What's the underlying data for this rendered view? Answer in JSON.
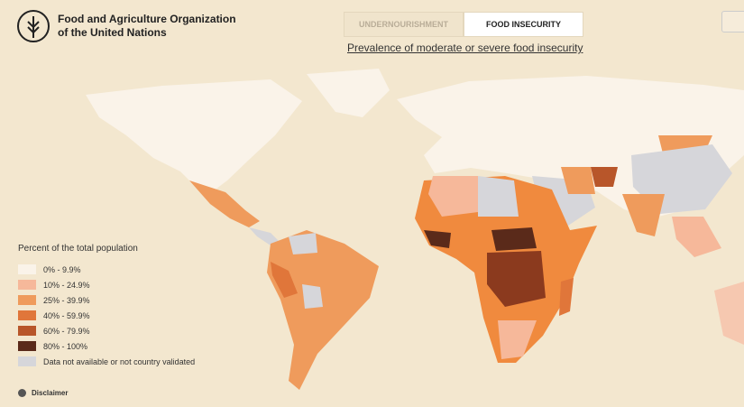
{
  "header": {
    "org_name": [
      "Food and Agriculture Organization",
      "of the United Nations"
    ]
  },
  "tabs": [
    {
      "label": "UNDERNOURISHMENT",
      "active": false
    },
    {
      "label": "FOOD INSECURITY",
      "active": true
    }
  ],
  "subtitle": "Prevalence of moderate or severe food insecurity",
  "legend": {
    "title": "Percent of the total population",
    "items": [
      {
        "label": "0% - 9.9%",
        "color": "#faf3e9"
      },
      {
        "label": "10% - 24.9%",
        "color": "#f6b89a"
      },
      {
        "label": "25% - 39.9%",
        "color": "#ef9b5c"
      },
      {
        "label": "40% - 59.9%",
        "color": "#e0763a"
      },
      {
        "label": "60% - 79.9%",
        "color": "#b8562a"
      },
      {
        "label": "80% - 100%",
        "color": "#5a2a1a"
      },
      {
        "label": "Data not available or not country validated",
        "color": "#d6d6da"
      }
    ]
  },
  "disclaimer": "Disclaimer"
}
